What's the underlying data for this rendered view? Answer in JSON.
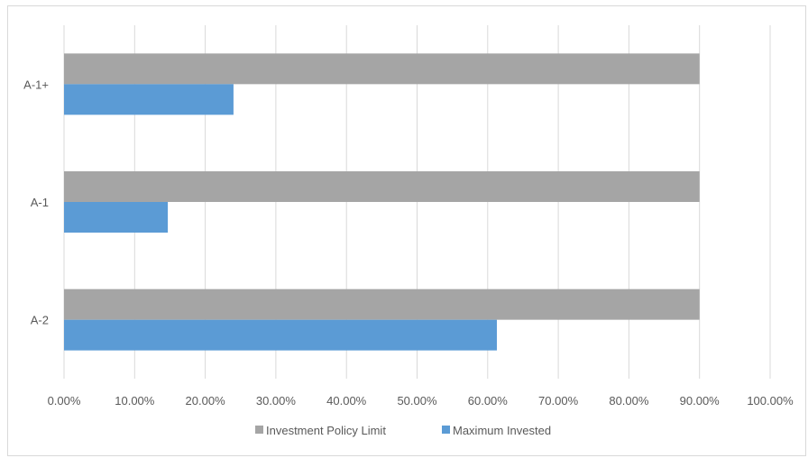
{
  "chart_data": {
    "type": "bar",
    "orientation": "horizontal",
    "categories": [
      "A-1+",
      "A-1",
      "A-2"
    ],
    "series": [
      {
        "name": "Investment Policy Limit",
        "color": "#a5a5a5",
        "values": [
          90,
          90,
          90
        ]
      },
      {
        "name": "Maximum Invested",
        "color": "#5b9bd5",
        "values": [
          24,
          14.7,
          61.3
        ]
      }
    ],
    "xlim": [
      0,
      100
    ],
    "xticks": [
      0,
      10,
      20,
      30,
      40,
      50,
      60,
      70,
      80,
      90,
      100
    ],
    "xtick_labels": [
      "0.00%",
      "10.00%",
      "20.00%",
      "30.00%",
      "40.00%",
      "50.00%",
      "60.00%",
      "70.00%",
      "80.00%",
      "90.00%",
      "100.00%"
    ],
    "grid": true,
    "legend_position": "bottom"
  }
}
